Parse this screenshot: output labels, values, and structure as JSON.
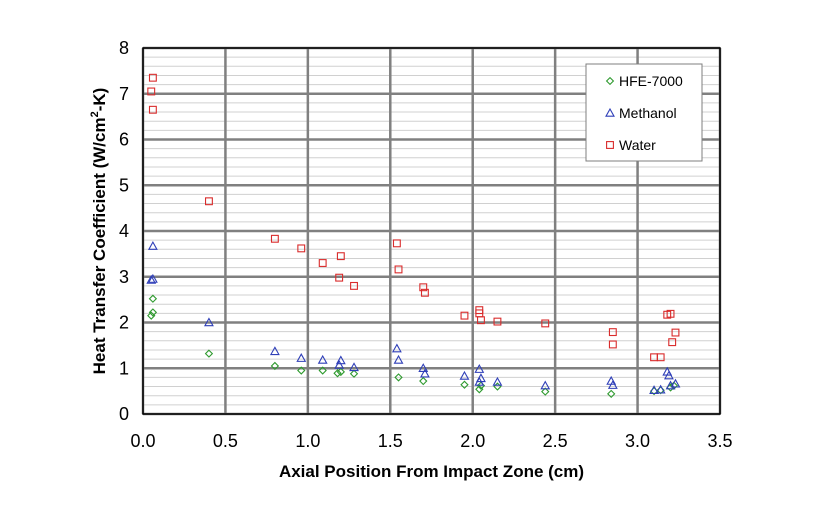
{
  "chart_data": {
    "type": "scatter",
    "xlabel": "Axial Position From Impact Zone (cm)",
    "ylabel_parts": [
      "Heat Transfer Coefficient (W/cm",
      "2",
      "-K)"
    ],
    "xlim": [
      0,
      3.5
    ],
    "ylim": [
      0,
      8
    ],
    "x_ticks": [
      "0.0",
      "0.5",
      "1.0",
      "1.5",
      "2.0",
      "2.5",
      "3.0",
      "3.5"
    ],
    "y_ticks": [
      "0",
      "1",
      "2",
      "3",
      "4",
      "5",
      "6",
      "7",
      "8"
    ],
    "grid": true,
    "minor_grid_y": true,
    "legend_position": "top-right",
    "series": [
      {
        "name": "HFE-7000",
        "marker": "diamond",
        "color": "#2e9a2e",
        "points": [
          [
            0.05,
            2.15
          ],
          [
            0.06,
            2.22
          ],
          [
            0.06,
            2.52
          ],
          [
            0.4,
            1.32
          ],
          [
            0.8,
            1.05
          ],
          [
            0.96,
            0.95
          ],
          [
            1.09,
            0.95
          ],
          [
            1.18,
            0.89
          ],
          [
            1.2,
            0.92
          ],
          [
            1.28,
            0.88
          ],
          [
            1.55,
            0.8
          ],
          [
            1.7,
            0.72
          ],
          [
            1.95,
            0.64
          ],
          [
            2.04,
            0.54
          ],
          [
            2.05,
            0.62
          ],
          [
            2.15,
            0.6
          ],
          [
            2.44,
            0.49
          ],
          [
            2.84,
            0.44
          ],
          [
            3.1,
            0.5
          ],
          [
            3.14,
            0.52
          ],
          [
            3.2,
            0.58
          ],
          [
            3.22,
            0.62
          ]
        ]
      },
      {
        "name": "Methanol",
        "marker": "triangle",
        "color": "#2f3fb8",
        "points": [
          [
            0.05,
            2.93
          ],
          [
            0.06,
            2.95
          ],
          [
            0.06,
            3.67
          ],
          [
            0.4,
            2.0
          ],
          [
            0.8,
            1.37
          ],
          [
            0.96,
            1.22
          ],
          [
            1.09,
            1.18
          ],
          [
            1.19,
            1.07
          ],
          [
            1.2,
            1.17
          ],
          [
            1.28,
            1.02
          ],
          [
            1.54,
            1.43
          ],
          [
            1.55,
            1.18
          ],
          [
            1.7,
            1.0
          ],
          [
            1.71,
            0.88
          ],
          [
            1.95,
            0.83
          ],
          [
            2.04,
            0.98
          ],
          [
            2.05,
            0.78
          ],
          [
            2.04,
            0.7
          ],
          [
            2.15,
            0.7
          ],
          [
            2.44,
            0.62
          ],
          [
            2.84,
            0.72
          ],
          [
            2.85,
            0.63
          ],
          [
            3.1,
            0.52
          ],
          [
            3.14,
            0.53
          ],
          [
            3.18,
            0.92
          ],
          [
            3.19,
            0.84
          ],
          [
            3.2,
            0.62
          ],
          [
            3.23,
            0.66
          ]
        ]
      },
      {
        "name": "Water",
        "marker": "square",
        "color": "#d92b2b",
        "points": [
          [
            0.05,
            7.05
          ],
          [
            0.06,
            7.35
          ],
          [
            0.06,
            6.65
          ],
          [
            0.4,
            4.65
          ],
          [
            0.8,
            3.83
          ],
          [
            0.96,
            3.62
          ],
          [
            1.09,
            3.3
          ],
          [
            1.19,
            2.98
          ],
          [
            1.2,
            3.45
          ],
          [
            1.28,
            2.8
          ],
          [
            1.54,
            3.73
          ],
          [
            1.55,
            3.16
          ],
          [
            1.7,
            2.77
          ],
          [
            1.71,
            2.65
          ],
          [
            1.95,
            2.15
          ],
          [
            2.04,
            2.27
          ],
          [
            2.04,
            2.2
          ],
          [
            2.05,
            2.05
          ],
          [
            2.15,
            2.02
          ],
          [
            2.44,
            1.98
          ],
          [
            2.85,
            1.79
          ],
          [
            2.85,
            1.52
          ],
          [
            3.1,
            1.24
          ],
          [
            3.14,
            1.24
          ],
          [
            3.18,
            2.17
          ],
          [
            3.2,
            2.19
          ],
          [
            3.21,
            1.57
          ],
          [
            3.23,
            1.78
          ]
        ]
      }
    ]
  },
  "colors": {
    "plot_background": "#ffffff",
    "major_grid": "#808080",
    "minor_grid": "#d0d0d0",
    "frame": "#000000"
  }
}
